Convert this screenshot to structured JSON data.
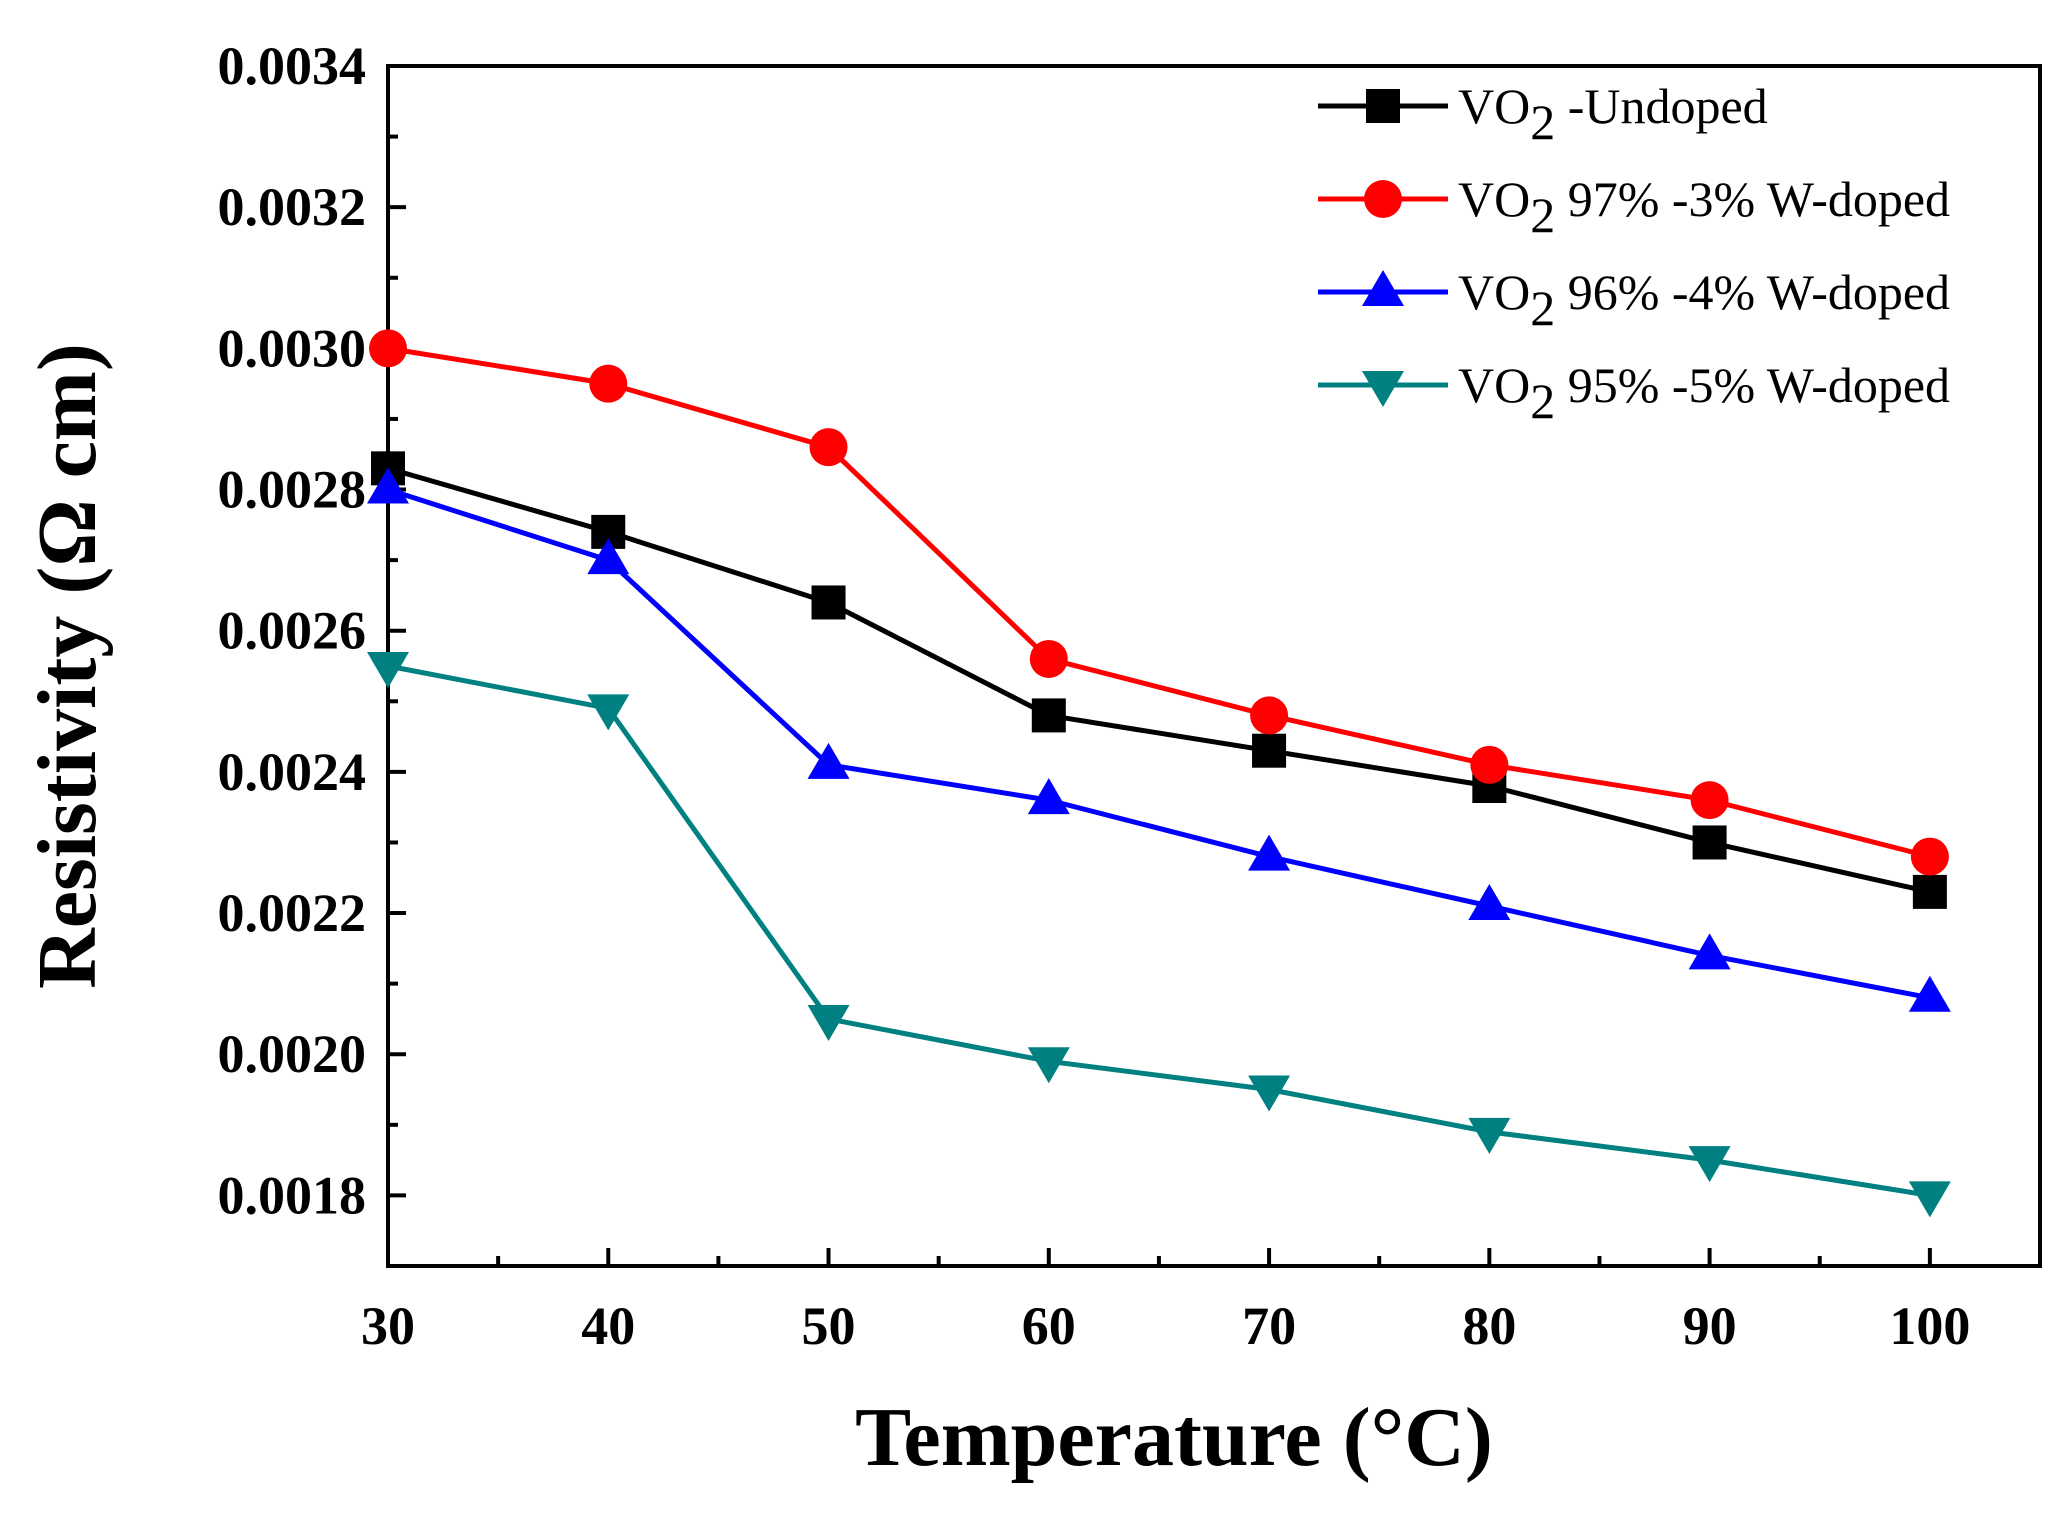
{
  "chart_data": {
    "type": "line",
    "title": "",
    "xlabel": "Temperature (°C)",
    "ylabel": "Resistivity (Ω cm)",
    "xlim": [
      30,
      105
    ],
    "ylim": [
      0.0017,
      0.0034
    ],
    "x": [
      30,
      40,
      50,
      60,
      70,
      80,
      90,
      100
    ],
    "x_tick_labels": [
      "30",
      "40",
      "50",
      "60",
      "70",
      "80",
      "90",
      "100"
    ],
    "y_ticks": [
      0.0018,
      0.002,
      0.0022,
      0.0024,
      0.0026,
      0.0028,
      0.003,
      0.0032,
      0.0034
    ],
    "y_tick_labels": [
      "0.0018",
      "0.0020",
      "0.0022",
      "0.0024",
      "0.0026",
      "0.0028",
      "0.0030",
      "0.0032",
      "0.0034"
    ],
    "grid": false,
    "legend_position": "top-right",
    "series": [
      {
        "name": "VO2 -Undoped",
        "label_main": "VO",
        "label_sub": "2",
        "label_rest": " -Undoped",
        "color": "#000000",
        "marker": "square",
        "values": [
          0.00283,
          0.00274,
          0.00264,
          0.00248,
          0.00243,
          0.00238,
          0.0023,
          0.00223
        ]
      },
      {
        "name": "VO2 97% -3% W-doped",
        "label_main": "VO",
        "label_sub": "2",
        "label_rest": " 97% -3% W-doped",
        "color": "#ff0000",
        "marker": "circle",
        "values": [
          0.003,
          0.00295,
          0.00286,
          0.00256,
          0.00248,
          0.00241,
          0.00236,
          0.00228
        ]
      },
      {
        "name": "VO2 96% -4% W-doped",
        "label_main": "VO",
        "label_sub": "2",
        "label_rest": " 96% -4% W-doped",
        "color": "#0000ff",
        "marker": "triangle-up",
        "values": [
          0.0028,
          0.0027,
          0.00241,
          0.00236,
          0.00228,
          0.00221,
          0.00214,
          0.00208
        ]
      },
      {
        "name": "VO2 95% -5% W-doped",
        "label_main": "VO",
        "label_sub": "2",
        "label_rest": " 95% -5% W-doped",
        "color": "#008080",
        "marker": "triangle-down",
        "values": [
          0.00255,
          0.00249,
          0.00205,
          0.00199,
          0.00195,
          0.00189,
          0.00185,
          0.0018
        ]
      }
    ]
  }
}
